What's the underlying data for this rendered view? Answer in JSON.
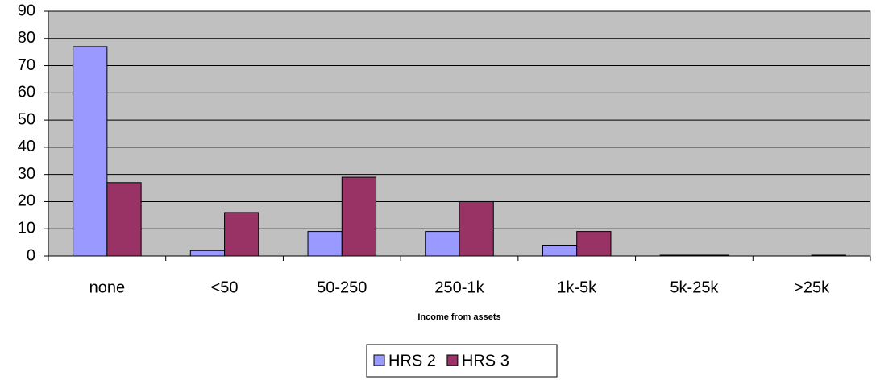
{
  "chart_data": {
    "type": "bar",
    "x_label": "Income from assets",
    "categories": [
      "none",
      "<50",
      "50-250",
      "250-1k",
      "1k-5k",
      "5k-25k",
      ">25k"
    ],
    "series": [
      {
        "name": "HRS 2",
        "color": "#9999ff",
        "values": [
          77,
          2,
          9,
          9,
          4,
          0.3,
          0
        ]
      },
      {
        "name": "HRS 3",
        "color": "#993366",
        "values": [
          27,
          16,
          29,
          20,
          9,
          0.3,
          0.3
        ]
      }
    ],
    "ylim": [
      0,
      90
    ],
    "yticks": [
      0,
      10,
      20,
      30,
      40,
      50,
      60,
      70,
      80,
      90
    ],
    "grid": true,
    "legend": "bottom"
  }
}
